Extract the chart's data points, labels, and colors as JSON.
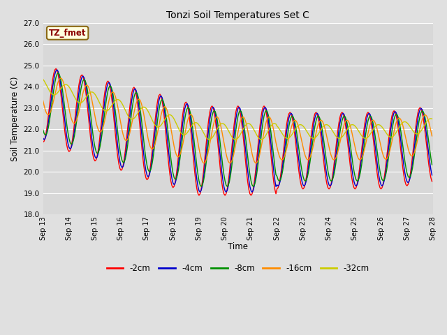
{
  "title": "Tonzi Soil Temperatures Set C",
  "xlabel": "Time",
  "ylabel": "Soil Temperature (C)",
  "annotation_text": "TZ_fmet",
  "annotation_color": "#8B0000",
  "annotation_bg": "#FFFFE0",
  "annotation_border": "#8B6914",
  "ylim": [
    18.0,
    27.0
  ],
  "yticks": [
    18.0,
    19.0,
    20.0,
    21.0,
    22.0,
    23.0,
    24.0,
    25.0,
    26.0,
    27.0
  ],
  "colors": {
    "-2cm": "#FF0000",
    "-4cm": "#0000CC",
    "-8cm": "#009000",
    "-16cm": "#FF8C00",
    "-32cm": "#CCCC00"
  },
  "bg_color": "#E0E0E0",
  "plot_bg_color": "#D8D8D8",
  "grid_color": "#FFFFFF",
  "n_days": 15,
  "start_day": 13,
  "pts_per_day": 24
}
